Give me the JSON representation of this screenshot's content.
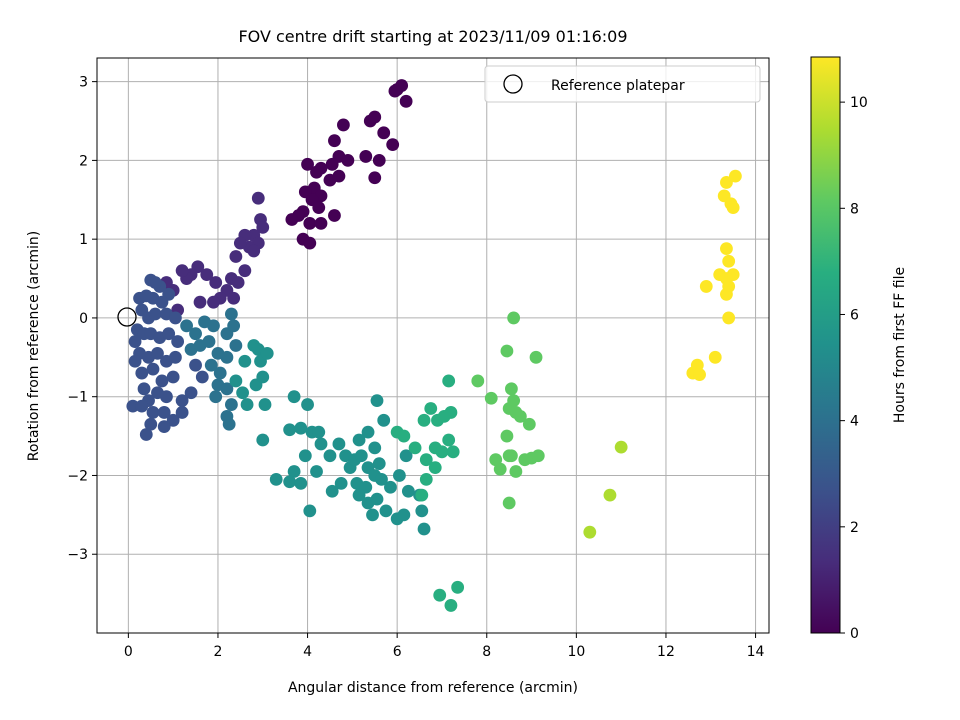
{
  "chart_data": {
    "type": "scatter",
    "title": "FOV centre drift starting at 2023/11/09 01:16:09",
    "xlabel": "Angular distance from reference (arcmin)",
    "ylabel": "Rotation from reference (arcmin)",
    "xlim": [
      -0.7,
      14.3
    ],
    "ylim": [
      -4.0,
      3.3
    ],
    "xticks": [
      0,
      2,
      4,
      6,
      8,
      10,
      12,
      14
    ],
    "yticks": [
      -3,
      -2,
      -1,
      0,
      1,
      2,
      3
    ],
    "grid": true,
    "legend": {
      "placement": "top-right",
      "entries": [
        {
          "label": "Reference platepar",
          "marker": "open-circle"
        }
      ]
    },
    "reference_point": {
      "x": 0,
      "y": 0
    },
    "colorbar": {
      "label": "Hours from first FF file",
      "colormap": "viridis",
      "range": [
        0,
        10.85
      ],
      "ticks": [
        0,
        2,
        4,
        6,
        8,
        10
      ]
    },
    "point_colors": [
      "#440154",
      "#472d7b",
      "#3b528b",
      "#2c728e",
      "#21918c",
      "#28ae80",
      "#5ec962",
      "#addc30",
      "#fde725"
    ],
    "series": [
      {
        "points": [
          [
            6.0,
            2.9
          ],
          [
            6.1,
            2.95
          ],
          [
            6.2,
            2.75
          ],
          [
            5.95,
            2.88
          ],
          [
            5.4,
            2.5
          ],
          [
            5.5,
            2.55
          ],
          [
            5.7,
            2.35
          ],
          [
            5.9,
            2.2
          ],
          [
            5.6,
            2.0
          ],
          [
            5.3,
            2.05
          ],
          [
            5.5,
            1.78
          ],
          [
            4.8,
            2.45
          ],
          [
            4.6,
            2.25
          ],
          [
            4.7,
            2.05
          ],
          [
            4.9,
            2.0
          ],
          [
            4.55,
            1.95
          ],
          [
            4.3,
            1.9
          ],
          [
            4.5,
            1.75
          ],
          [
            4.7,
            1.8
          ],
          [
            4.0,
            1.95
          ],
          [
            4.2,
            1.85
          ],
          [
            4.15,
            1.65
          ],
          [
            4.3,
            1.55
          ],
          [
            3.95,
            1.6
          ],
          [
            4.1,
            1.5
          ],
          [
            4.25,
            1.4
          ],
          [
            3.9,
            1.35
          ],
          [
            4.05,
            1.2
          ],
          [
            3.8,
            1.3
          ],
          [
            3.65,
            1.25
          ],
          [
            4.3,
            1.2
          ],
          [
            4.6,
            1.3
          ],
          [
            3.9,
            1.0
          ],
          [
            4.05,
            0.95
          ]
        ]
      },
      {
        "points": [
          [
            2.9,
            1.52
          ],
          [
            2.95,
            1.25
          ],
          [
            3.0,
            1.15
          ],
          [
            2.8,
            1.05
          ],
          [
            2.6,
            1.05
          ],
          [
            2.9,
            0.95
          ],
          [
            2.7,
            0.9
          ],
          [
            2.5,
            0.95
          ],
          [
            2.4,
            0.78
          ],
          [
            2.8,
            0.85
          ],
          [
            2.6,
            0.6
          ],
          [
            2.3,
            0.5
          ],
          [
            2.45,
            0.45
          ],
          [
            2.2,
            0.35
          ],
          [
            2.35,
            0.25
          ],
          [
            2.05,
            0.25
          ],
          [
            1.95,
            0.45
          ],
          [
            1.75,
            0.55
          ],
          [
            1.9,
            0.2
          ],
          [
            1.6,
            0.2
          ],
          [
            1.55,
            0.65
          ],
          [
            1.4,
            0.55
          ],
          [
            1.3,
            0.5
          ],
          [
            1.2,
            0.6
          ],
          [
            1.0,
            0.35
          ],
          [
            1.1,
            0.1
          ],
          [
            0.85,
            0.45
          ]
        ]
      },
      {
        "points": [
          [
            0.5,
            0.48
          ],
          [
            0.7,
            0.4
          ],
          [
            0.6,
            0.45
          ],
          [
            0.9,
            0.3
          ],
          [
            0.25,
            0.25
          ],
          [
            0.4,
            0.28
          ],
          [
            0.55,
            0.25
          ],
          [
            0.75,
            0.2
          ],
          [
            0.3,
            0.1
          ],
          [
            0.45,
            0.0
          ],
          [
            0.6,
            0.05
          ],
          [
            0.85,
            0.05
          ],
          [
            1.05,
            0.0
          ],
          [
            0.2,
            -0.15
          ],
          [
            0.35,
            -0.2
          ],
          [
            0.15,
            -0.3
          ],
          [
            0.5,
            -0.2
          ],
          [
            0.7,
            -0.25
          ],
          [
            0.9,
            -0.2
          ],
          [
            1.1,
            -0.3
          ],
          [
            0.25,
            -0.45
          ],
          [
            0.15,
            -0.55
          ],
          [
            0.45,
            -0.5
          ],
          [
            0.65,
            -0.45
          ],
          [
            0.85,
            -0.55
          ],
          [
            1.05,
            -0.5
          ],
          [
            0.3,
            -0.7
          ],
          [
            0.55,
            -0.65
          ],
          [
            0.75,
            -0.8
          ],
          [
            1.0,
            -0.75
          ],
          [
            0.35,
            -0.9
          ],
          [
            0.65,
            -0.95
          ],
          [
            0.45,
            -1.05
          ],
          [
            0.85,
            -1.0
          ],
          [
            0.1,
            -1.12
          ],
          [
            0.3,
            -1.12
          ],
          [
            0.55,
            -1.2
          ],
          [
            0.8,
            -1.2
          ],
          [
            1.0,
            -1.3
          ],
          [
            0.5,
            -1.35
          ],
          [
            0.4,
            -1.48
          ],
          [
            0.8,
            -1.38
          ],
          [
            1.2,
            -1.2
          ],
          [
            1.4,
            -0.95
          ],
          [
            1.2,
            -1.05
          ],
          [
            1.5,
            -0.6
          ],
          [
            1.65,
            -0.75
          ]
        ]
      },
      {
        "points": [
          [
            1.3,
            -0.1
          ],
          [
            1.5,
            -0.2
          ],
          [
            1.7,
            -0.05
          ],
          [
            1.9,
            -0.1
          ],
          [
            1.4,
            -0.4
          ],
          [
            1.6,
            -0.35
          ],
          [
            1.8,
            -0.3
          ],
          [
            2.0,
            -0.45
          ],
          [
            2.2,
            -0.2
          ],
          [
            2.35,
            -0.1
          ],
          [
            2.3,
            0.05
          ],
          [
            1.85,
            -0.6
          ],
          [
            2.05,
            -0.7
          ],
          [
            2.2,
            -0.5
          ],
          [
            2.4,
            -0.35
          ],
          [
            2.0,
            -0.85
          ],
          [
            2.2,
            -0.9
          ],
          [
            1.95,
            -1.0
          ],
          [
            2.3,
            -1.1
          ],
          [
            2.2,
            -1.25
          ],
          [
            2.25,
            -1.35
          ]
        ]
      },
      {
        "points": [
          [
            2.4,
            -0.8
          ],
          [
            2.6,
            -0.55
          ],
          [
            2.8,
            -0.35
          ],
          [
            2.9,
            -0.4
          ],
          [
            2.95,
            -0.55
          ],
          [
            2.85,
            -0.85
          ],
          [
            2.65,
            -1.1
          ],
          [
            2.55,
            -0.95
          ],
          [
            3.1,
            -0.45
          ],
          [
            3.0,
            -0.75
          ],
          [
            3.05,
            -1.1
          ],
          [
            3.0,
            -1.55
          ],
          [
            3.6,
            -1.42
          ],
          [
            3.7,
            -1.0
          ],
          [
            3.85,
            -1.4
          ],
          [
            4.0,
            -1.1
          ],
          [
            4.1,
            -1.45
          ],
          [
            4.3,
            -1.6
          ],
          [
            4.25,
            -1.45
          ],
          [
            3.95,
            -1.75
          ],
          [
            4.2,
            -1.95
          ],
          [
            3.7,
            -1.95
          ],
          [
            3.6,
            -2.08
          ],
          [
            3.85,
            -2.1
          ],
          [
            3.3,
            -2.05
          ],
          [
            4.05,
            -2.45
          ],
          [
            4.5,
            -1.75
          ],
          [
            4.7,
            -1.6
          ],
          [
            4.85,
            -1.75
          ],
          [
            4.55,
            -2.2
          ],
          [
            4.75,
            -2.1
          ],
          [
            4.95,
            -1.9
          ],
          [
            5.05,
            -1.8
          ],
          [
            5.2,
            -1.75
          ],
          [
            5.35,
            -1.9
          ],
          [
            5.1,
            -2.1
          ],
          [
            5.3,
            -2.15
          ],
          [
            5.5,
            -2.0
          ],
          [
            5.15,
            -2.25
          ],
          [
            5.35,
            -2.35
          ],
          [
            5.55,
            -2.3
          ],
          [
            5.45,
            -2.5
          ],
          [
            5.75,
            -2.45
          ],
          [
            5.85,
            -2.15
          ],
          [
            5.65,
            -2.05
          ],
          [
            5.6,
            -1.85
          ],
          [
            5.5,
            -1.65
          ],
          [
            5.35,
            -1.45
          ],
          [
            5.15,
            -1.55
          ],
          [
            5.7,
            -1.3
          ],
          [
            5.55,
            -1.05
          ],
          [
            6.0,
            -2.55
          ],
          [
            6.15,
            -2.5
          ],
          [
            6.25,
            -2.2
          ],
          [
            6.05,
            -2.0
          ],
          [
            6.2,
            -1.75
          ],
          [
            6.5,
            -2.25
          ],
          [
            6.55,
            -2.45
          ],
          [
            6.6,
            -2.68
          ]
        ]
      },
      {
        "points": [
          [
            6.0,
            -1.45
          ],
          [
            6.15,
            -1.5
          ],
          [
            6.4,
            -1.65
          ],
          [
            6.6,
            -1.3
          ],
          [
            6.75,
            -1.15
          ],
          [
            6.9,
            -1.3
          ],
          [
            6.65,
            -1.8
          ],
          [
            6.85,
            -1.65
          ],
          [
            7.0,
            -1.7
          ],
          [
            7.15,
            -1.55
          ],
          [
            7.25,
            -1.7
          ],
          [
            7.05,
            -1.25
          ],
          [
            7.2,
            -1.2
          ],
          [
            6.85,
            -1.9
          ],
          [
            6.65,
            -2.05
          ],
          [
            6.55,
            -2.25
          ],
          [
            7.15,
            -0.8
          ],
          [
            6.95,
            -3.52
          ],
          [
            7.2,
            -3.65
          ],
          [
            7.35,
            -3.42
          ]
        ]
      },
      {
        "points": [
          [
            7.8,
            -0.8
          ],
          [
            8.1,
            -1.02
          ],
          [
            8.45,
            -0.42
          ],
          [
            8.55,
            -0.9
          ],
          [
            8.5,
            -1.15
          ],
          [
            8.65,
            -1.2
          ],
          [
            8.45,
            -1.5
          ],
          [
            8.6,
            -1.05
          ],
          [
            8.75,
            -1.25
          ],
          [
            8.95,
            -1.35
          ],
          [
            8.55,
            -1.75
          ],
          [
            8.65,
            -1.95
          ],
          [
            8.5,
            -2.35
          ],
          [
            8.85,
            -1.8
          ],
          [
            9.0,
            -1.78
          ],
          [
            9.15,
            -1.75
          ],
          [
            9.1,
            -0.5
          ],
          [
            8.6,
            0.0
          ],
          [
            8.2,
            -1.8
          ],
          [
            8.3,
            -1.92
          ],
          [
            8.5,
            -1.75
          ]
        ]
      },
      {
        "points": [
          [
            10.3,
            -2.72
          ],
          [
            10.75,
            -2.25
          ],
          [
            11.0,
            -1.64
          ]
        ]
      },
      {
        "points": [
          [
            13.35,
            1.72
          ],
          [
            13.55,
            1.8
          ],
          [
            13.3,
            1.55
          ],
          [
            13.45,
            1.45
          ],
          [
            13.5,
            1.4
          ],
          [
            13.35,
            0.88
          ],
          [
            13.4,
            0.72
          ],
          [
            13.2,
            0.55
          ],
          [
            13.5,
            0.55
          ],
          [
            13.35,
            0.5
          ],
          [
            13.4,
            0.4
          ],
          [
            12.9,
            0.4
          ],
          [
            13.35,
            0.3
          ],
          [
            13.4,
            0.0
          ],
          [
            13.1,
            -0.5
          ],
          [
            12.7,
            -0.6
          ],
          [
            12.6,
            -0.7
          ],
          [
            12.75,
            -0.72
          ]
        ]
      }
    ]
  }
}
